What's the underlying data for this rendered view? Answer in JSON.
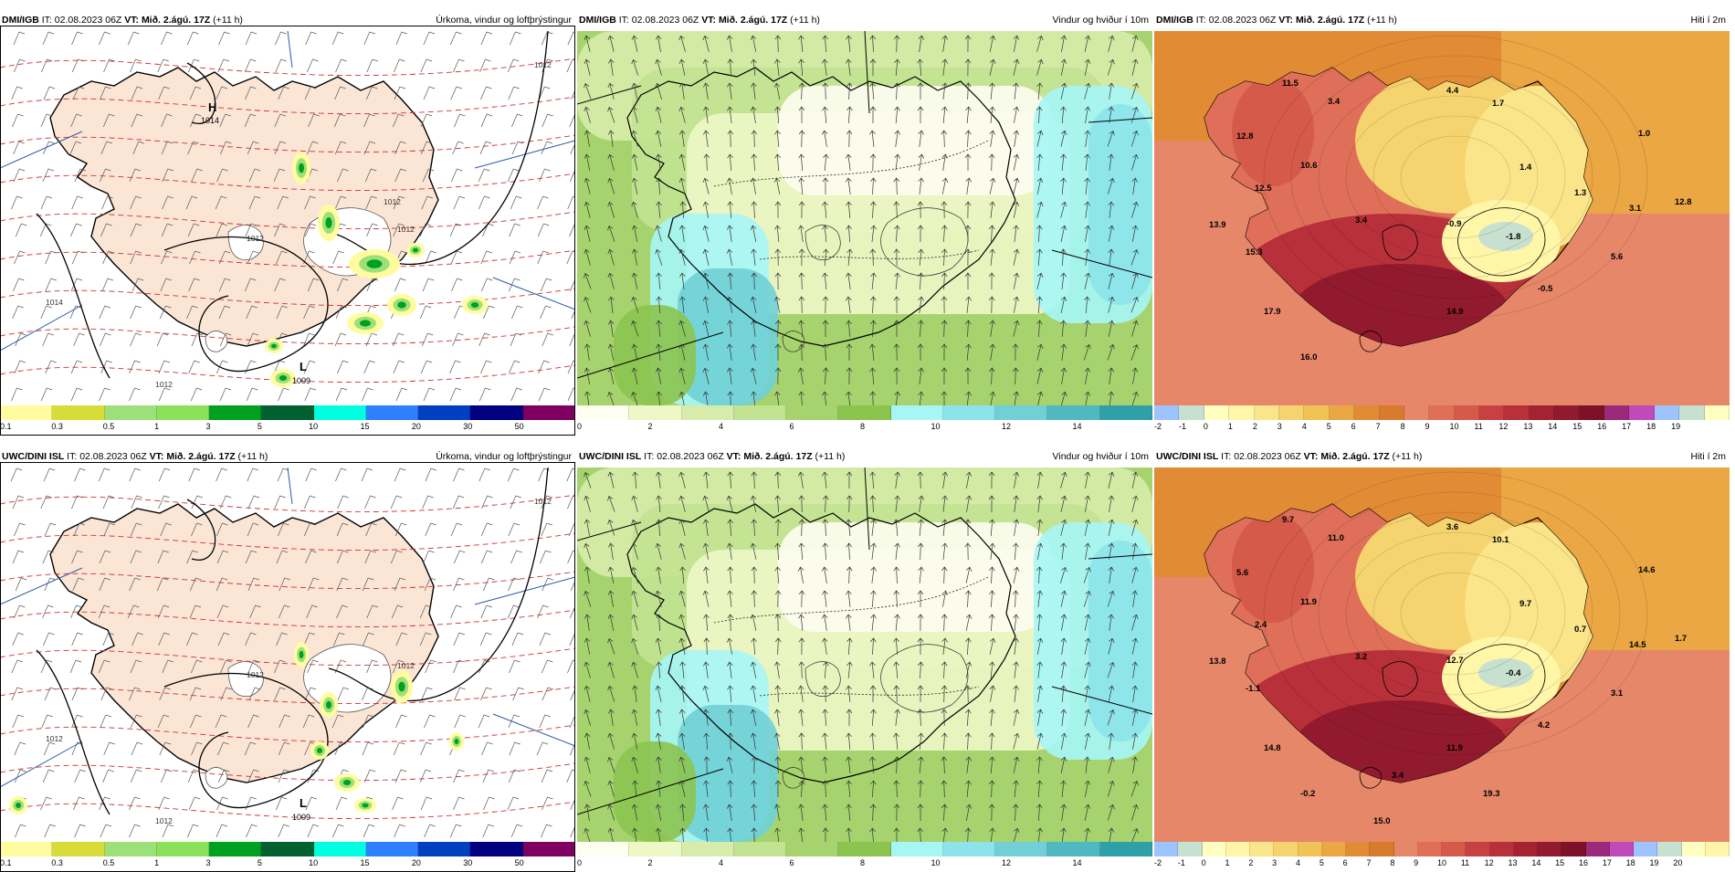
{
  "colors": {
    "land": "#fbe6d6",
    "precip": [
      "#fffca0",
      "#d8dc38",
      "#9de07a",
      "#8ce15a",
      "#00a020",
      "#006030",
      "#00ffe0",
      "#2e7fff",
      "#0040c0",
      "#000080",
      "#800060",
      "#ff1090",
      "#ff0000"
    ],
    "wind": [
      "#fdfdf0",
      "#eef7c6",
      "#d7ecaa",
      "#c2e392",
      "#a6d36e",
      "#8cc450",
      "#a6f6f6",
      "#8ce4ea",
      "#70d0d6",
      "#50b8c0",
      "#30a0a8"
    ],
    "temp": [
      "#9ec4ff",
      "#c8e0d0",
      "#ffffc0",
      "#fff6a8",
      "#fbe58a",
      "#f5d36e",
      "#f1c254",
      "#eaa743",
      "#e18b35",
      "#d97b2f",
      "#e7876a",
      "#df6f58",
      "#d65a4a",
      "#c94042",
      "#b8303a",
      "#a42232",
      "#921a2e",
      "#7e1028",
      "#9c2a7a",
      "#c04aba"
    ]
  },
  "panels": [
    {
      "source": "DMI/IGB",
      "it_label": "IT:",
      "it_value": "02.08.2023 06Z",
      "vt_label": "VT:",
      "vt_value": "Mið. 2.ágú. 17Z",
      "lead": "(+11 h)",
      "title": "Úrkoma, vindur og loftþrýstingur",
      "scale": [
        "0.1",
        "0.3",
        "0.5",
        "1",
        "3",
        "5",
        "10",
        "15",
        "20",
        "30",
        "50"
      ],
      "highs": [
        {
          "label": "H",
          "value": "1014"
        }
      ],
      "lows": [
        {
          "label": "L",
          "value": "1009"
        }
      ],
      "isobars": [
        "1012",
        "1012",
        "1012",
        "1014",
        "1012",
        "1012"
      ],
      "temps": []
    },
    {
      "source": "DMI/IGB",
      "it_label": "IT:",
      "it_value": "02.08.2023 06Z",
      "vt_label": "VT:",
      "vt_value": "Mið. 2.ágú. 17Z",
      "lead": "(+11 h)",
      "title": "Vindur og hviður í 10m",
      "scale": [
        "0",
        "2",
        "4",
        "6",
        "8",
        "10",
        "12",
        "14"
      ],
      "temps": []
    },
    {
      "source": "DMI/IGB",
      "it_label": "IT:",
      "it_value": "02.08.2023 06Z",
      "vt_label": "VT:",
      "vt_value": "Mið. 2.ágú. 17Z",
      "lead": "(+11 h)",
      "title": "Hiti í 2m",
      "scale": [
        "-2",
        "-1",
        "0",
        "1",
        "2",
        "3",
        "4",
        "5",
        "6",
        "7",
        "8",
        "9",
        "10",
        "11",
        "12",
        "13",
        "14",
        "15",
        "16",
        "17",
        "18",
        "19"
      ],
      "temps": [
        "11.5",
        "3.4",
        "4.4",
        "1.7",
        "12.8",
        "1.0",
        "10.6",
        "1.4",
        "12.5",
        "1.3",
        "13.9",
        "3.4",
        "-0.9",
        "3.1",
        "12.8",
        "-1.8",
        "15.3",
        "5.6",
        "-0.5",
        "17.9",
        "14.9",
        "16.0"
      ]
    },
    {
      "source": "UWC/DINI ISL",
      "it_label": "IT:",
      "it_value": "02.08.2023 06Z",
      "vt_label": "VT:",
      "vt_value": "Mið. 2.ágú. 17Z",
      "lead": "(+11 h)",
      "title": "Úrkoma, vindur og loftþrýstingur",
      "scale": [
        "0.1",
        "0.3",
        "0.5",
        "1",
        "3",
        "5",
        "10",
        "15",
        "20",
        "30",
        "50"
      ],
      "highs": [],
      "lows": [
        {
          "label": "L",
          "value": "1009"
        }
      ],
      "isobars": [
        "1012",
        "1012",
        "1012",
        "1012",
        "1012"
      ],
      "temps": []
    },
    {
      "source": "UWC/DINI ISL",
      "it_label": "IT:",
      "it_value": "02.08.2023 06Z",
      "vt_label": "VT:",
      "vt_value": "Mið. 2.ágú. 17Z",
      "lead": "(+11 h)",
      "title": "Vindur og hviður í 10m",
      "scale": [
        "0",
        "2",
        "4",
        "6",
        "8",
        "10",
        "12",
        "14"
      ],
      "temps": []
    },
    {
      "source": "UWC/DINI ISL",
      "it_label": "IT:",
      "it_value": "02.08.2023 06Z",
      "vt_label": "VT:",
      "vt_value": "Mið. 2.ágú. 17Z",
      "lead": "(+11 h)",
      "title": "Hiti í 2m",
      "scale": [
        "-2",
        "-1",
        "0",
        "1",
        "2",
        "3",
        "4",
        "5",
        "6",
        "7",
        "8",
        "9",
        "10",
        "11",
        "12",
        "13",
        "14",
        "15",
        "16",
        "17",
        "18",
        "19",
        "20"
      ],
      "temps": [
        "9.7",
        "11.0",
        "3.6",
        "10.1",
        "5.6",
        "14.6",
        "11.9",
        "9.7",
        "2.4",
        "0.7",
        "13.8",
        "3.2",
        "12.7",
        "14.5",
        "1.7",
        "-0.4",
        "-1.1",
        "3.1",
        "4.2",
        "14.8",
        "11.9",
        "-0.2",
        "15.0",
        "3.4",
        "19.3"
      ]
    }
  ]
}
